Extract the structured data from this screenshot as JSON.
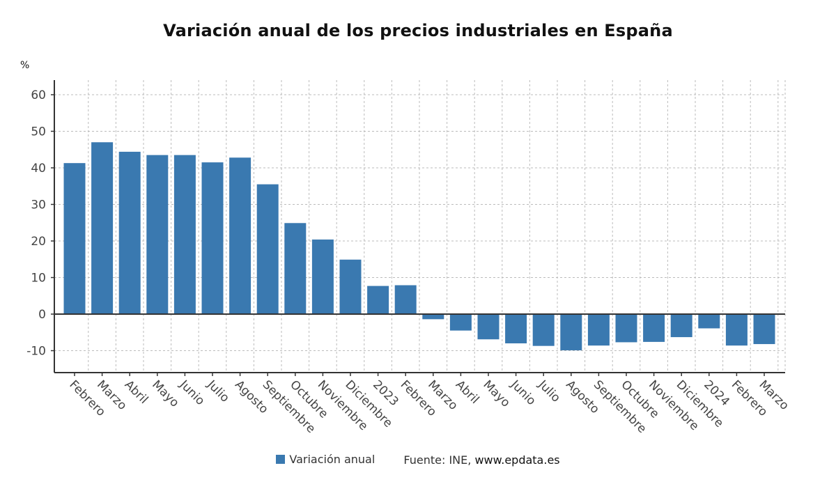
{
  "chart_data": {
    "type": "bar",
    "title": "Variación anual de los precios industriales en España",
    "ylabel": "%",
    "xlabel": "",
    "ylim": [
      -16,
      64
    ],
    "yticks": [
      -10,
      0,
      10,
      20,
      30,
      40,
      50,
      60
    ],
    "grid": true,
    "legend_position": "bottom-center",
    "categories": [
      "Febrero",
      "Marzo",
      "Abril",
      "Mayo",
      "Junio",
      "Julio",
      "Agosto",
      "Septiembre",
      "Octubre",
      "Noviembre",
      "Diciembre",
      "2023",
      "Febrero",
      "Marzo",
      "Abril",
      "Mayo",
      "Junio",
      "Julio",
      "Agosto",
      "Septiembre",
      "Octubre",
      "Noviembre",
      "Diciembre",
      "2024",
      "Febrero",
      "Marzo"
    ],
    "series": [
      {
        "name": "Variación anual",
        "color": "#3a79b0",
        "values": [
          41.3,
          47.0,
          44.4,
          43.5,
          43.5,
          41.5,
          42.8,
          35.5,
          24.9,
          20.4,
          14.9,
          7.7,
          7.9,
          -1.4,
          -4.5,
          -6.9,
          -8.0,
          -8.7,
          -9.9,
          -8.6,
          -7.7,
          -7.6,
          -6.3,
          -3.9,
          -8.6,
          -8.2
        ]
      }
    ],
    "source": "Fuente: INE,",
    "source_site": "www.epdata.es"
  }
}
